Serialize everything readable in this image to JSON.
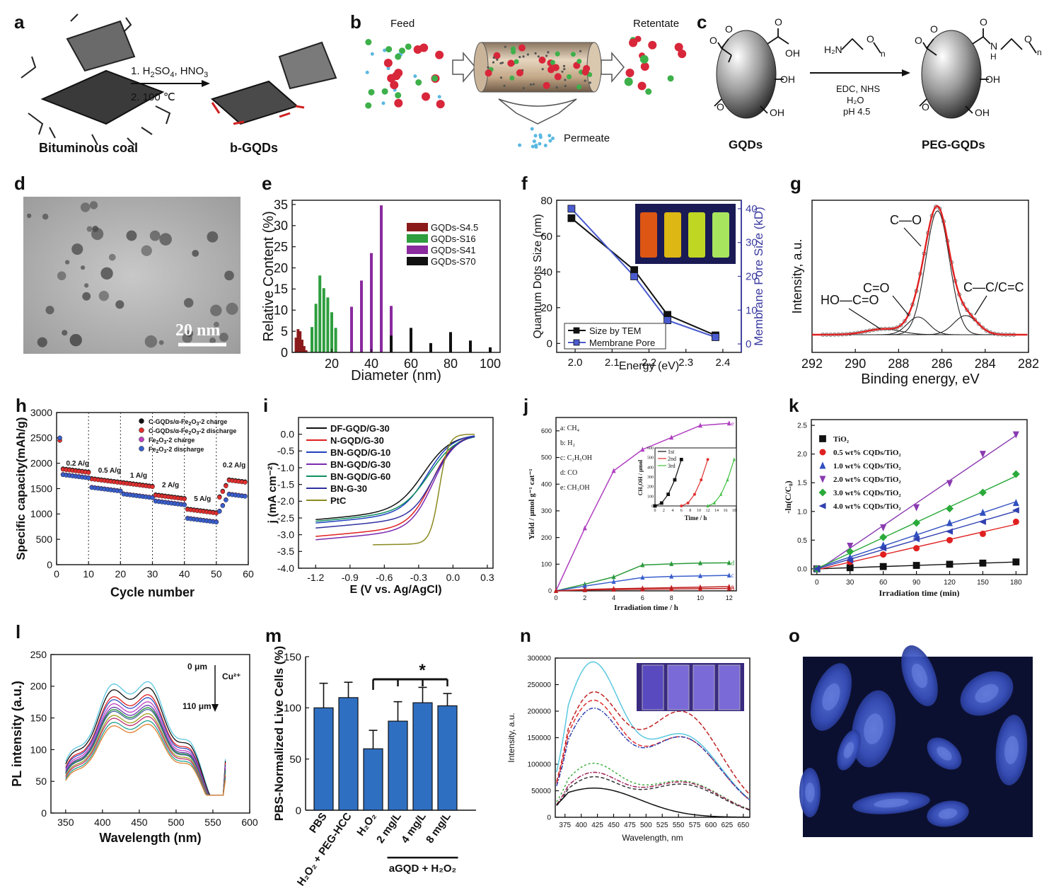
{
  "panel_labels": [
    "a",
    "b",
    "c",
    "d",
    "e",
    "f",
    "g",
    "h",
    "i",
    "j",
    "k",
    "l",
    "m",
    "n",
    "o"
  ],
  "scheme": {
    "a": {
      "left_label": "Bituminous coal",
      "right_label": "b-GQDs",
      "step1_pre": "1. H",
      "step1_sub1": "2",
      "step1_mid": "SO",
      "step1_sub2": "4",
      "step1_mid2": ", HNO",
      "step1_sub3": "3",
      "step2": "2. 100 ℃"
    },
    "b": {
      "feed": "Feed",
      "retentate": "Retentate",
      "permeate": "Permeate"
    },
    "c": {
      "reactant_label": "GQDs",
      "product_label": "PEG-GQDs",
      "reagent_amine": "H₂N",
      "reagent_n": "n",
      "reagent_o": "O",
      "cond1": "EDC, NHS",
      "cond2": "H₂O",
      "cond3": "pH 4.5",
      "oh": "OH",
      "o": "O",
      "nh": "N",
      "h": "H"
    }
  },
  "images": {
    "d": {
      "scale_text": "20 nm"
    },
    "o": {}
  },
  "colors": {
    "maroon": "#8b1a1a",
    "green": "#2e9e3e",
    "purple": "#8a2a9e",
    "black": "#111111",
    "blue": "#3a5fcd",
    "red": "#e03030",
    "bar_blue": "#2f6fc2",
    "cyan": "#5bc8e0"
  },
  "chart_data": [
    {
      "panel": "e",
      "type": "bar",
      "xlabel": "Diameter (nm)",
      "ylabel": "Relative Content (%)",
      "xlim": [
        0,
        105
      ],
      "ylim": [
        0,
        36
      ],
      "xticks": [
        20,
        40,
        60,
        80,
        100
      ],
      "yticks": [
        0,
        5,
        10,
        15,
        20,
        25,
        30,
        35
      ],
      "legend": [
        "GQDs-S4.5",
        "GQDs-S16",
        "GQDs-S41",
        "GQDs-S70"
      ],
      "series": [
        {
          "name": "GQDs-S4.5",
          "x": [
            2,
            3,
            4,
            5,
            6,
            7
          ],
          "values": [
            3.5,
            5.5,
            5,
            3,
            1.5,
            0.5
          ]
        },
        {
          "name": "GQDs-S16",
          "x": [
            10,
            12,
            14,
            16,
            18,
            20,
            22
          ],
          "values": [
            6,
            11.5,
            18.2,
            15.2,
            13,
            9.5,
            5.8
          ]
        },
        {
          "name": "GQDs-S41",
          "x": [
            30,
            35,
            40,
            45,
            50
          ],
          "values": [
            10.8,
            17,
            23.5,
            34.8,
            11
          ]
        },
        {
          "name": "GQDs-S70",
          "x": [
            50,
            60,
            70,
            80,
            90,
            100
          ],
          "values": [
            4,
            5.8,
            2.2,
            4.8,
            2.8,
            1.2
          ]
        }
      ]
    },
    {
      "panel": "f",
      "type": "line",
      "xlabel": "Energy (eV)",
      "ylabel": "Quantum Dots Size (nm)",
      "y2label": "Membrane Pore Size (kD)",
      "xlim": [
        1.95,
        2.45
      ],
      "ylim": [
        -5,
        80
      ],
      "y2lim": [
        -2.5,
        42.5
      ],
      "xticks": [
        2.0,
        2.1,
        2.2,
        2.3,
        2.4
      ],
      "yticks": [
        0,
        20,
        40,
        60,
        80
      ],
      "y2ticks": [
        0,
        10,
        20,
        30,
        40
      ],
      "x": [
        1.99,
        2.16,
        2.25,
        2.38
      ],
      "series": [
        {
          "name": "Size by TEM",
          "values": [
            70,
            41,
            16,
            4.5
          ]
        },
        {
          "name": "Membrane Pore",
          "values": [
            40,
            20,
            7,
            2
          ],
          "axis": "right"
        }
      ]
    },
    {
      "panel": "g",
      "type": "line",
      "xlabel": "Binding energy, eV",
      "ylabel": "Intensity, a.u.",
      "xlim": [
        292,
        282
      ],
      "xticks": [
        292,
        290,
        288,
        286,
        284,
        282
      ],
      "annotations": [
        "C—O",
        "C=O",
        "HO—C=O",
        "C—C/C=C"
      ]
    },
    {
      "panel": "h",
      "type": "line",
      "xlabel": "Cycle number",
      "ylabel": "Specific capacity(mAh/g)",
      "xlim": [
        0,
        60
      ],
      "ylim": [
        0,
        3000
      ],
      "xticks": [
        0,
        10,
        20,
        30,
        40,
        50,
        60
      ],
      "yticks": [
        0,
        500,
        1000,
        1500,
        2000,
        2500,
        3000
      ],
      "rate_labels": [
        "0.2 A/g",
        "0.5 A/g",
        "1 A/g",
        "2 A/g",
        "5 A/g",
        "0.2 A/g"
      ],
      "legend_parts": [
        [
          "C-GQDs/α-Fe",
          "2",
          "O",
          "3",
          "-2 charge"
        ],
        [
          "C-GQDs/α-Fe",
          "2",
          "O",
          "3",
          "-2 discharge"
        ],
        [
          "Fe",
          "2",
          "O",
          "3",
          "-2  charge"
        ],
        [
          "Fe",
          "2",
          "O",
          "3",
          "-2  discharge"
        ]
      ],
      "segments": [
        [
          0,
          1900,
          1820
        ],
        [
          10,
          1700,
          1560
        ],
        [
          20,
          1620,
          1430
        ],
        [
          30,
          1380,
          1290
        ],
        [
          40,
          1100,
          950
        ],
        [
          50,
          1700,
          1450
        ]
      ]
    },
    {
      "panel": "i",
      "type": "line",
      "xlabel": "E (V vs. Ag/AgCl)",
      "ylabel": "j (mA cm⁻²)",
      "xlim": [
        -1.35,
        0.35
      ],
      "ylim": [
        -4.0,
        0.5
      ],
      "xticks": [
        -1.2,
        -0.9,
        -0.6,
        -0.3,
        0.0,
        0.3
      ],
      "yticks": [
        0.0,
        -0.5,
        -1.0,
        -1.5,
        -2.0,
        -2.5,
        -3.0,
        -3.5,
        -4.0
      ],
      "legend": [
        "DF-GQD/G-30",
        "N-GQD/G-30",
        "BN-GQD/G-10",
        "BN-GQD/G-30",
        "BN-GQD/G-60",
        "BN-G-30",
        "PtC"
      ]
    },
    {
      "panel": "j",
      "type": "line",
      "xlabel": "Irradiation time / h",
      "ylabel": "Yield / μmol g⁻¹ cat⁻¹",
      "xlim": [
        0,
        12.5
      ],
      "ylim": [
        0,
        650
      ],
      "xticks": [
        0,
        2,
        4,
        6,
        8,
        10,
        12
      ],
      "yticks": [
        0,
        100,
        200,
        300,
        400,
        500,
        600
      ],
      "legend": [
        "a: CH₄",
        "b: H₂",
        "c: C₂H₅OH",
        "d: CO",
        "e: CH₃OH"
      ],
      "x": [
        0,
        2,
        4,
        6,
        8,
        10,
        12
      ],
      "series": [
        {
          "name": "e",
          "values": [
            0,
            235,
            450,
            530,
            575,
            620,
            628
          ]
        },
        {
          "name": "d",
          "values": [
            0,
            25,
            52,
            97,
            101,
            104,
            105
          ]
        },
        {
          "name": "c",
          "values": [
            0,
            18,
            34,
            50,
            54,
            56,
            58
          ]
        },
        {
          "name": "a",
          "values": [
            0,
            5,
            8,
            10,
            12,
            14,
            16
          ]
        },
        {
          "name": "b",
          "values": [
            0,
            3,
            5,
            6,
            7,
            8,
            9
          ]
        }
      ],
      "inset": {
        "xlabel": "Time / h",
        "ylabel": "CH₃OH / μmol",
        "legend": [
          "1st",
          "2nd",
          "3rd"
        ],
        "xticks": [
          0,
          2,
          4,
          6,
          8,
          10,
          12,
          14,
          16,
          18
        ],
        "yticks": [
          0,
          100,
          200,
          300,
          400,
          500,
          600
        ]
      }
    },
    {
      "panel": "k",
      "type": "scatter",
      "xlabel": "Irradiation time (min)",
      "ylabel": "-ln(C/C₀)",
      "xlim": [
        -5,
        190
      ],
      "ylim": [
        -0.1,
        2.6
      ],
      "xticks": [
        0,
        30,
        60,
        90,
        120,
        150,
        180
      ],
      "yticks": [
        0.0,
        0.5,
        1.0,
        1.5,
        2.0,
        2.5
      ],
      "legend": [
        "TiO₂",
        "0.5 wt% CQDs/TiO₂",
        "1.0 wt% CQDs/TiO₂",
        "2.0 wt% CQDs/TiO₂",
        "3.0 wt% CQDs/TiO₂",
        "4.0 wt% CQDs/TiO₂"
      ],
      "x": [
        0,
        30,
        60,
        90,
        120,
        150,
        180
      ],
      "series": [
        {
          "name": "TiO₂",
          "values": [
            0,
            0.02,
            0.04,
            0.06,
            0.08,
            0.1,
            0.12
          ]
        },
        {
          "name": "0.5 wt% CQDs/TiO₂",
          "values": [
            0,
            0.12,
            0.25,
            0.36,
            0.5,
            0.61,
            0.82
          ]
        },
        {
          "name": "1.0 wt% CQDs/TiO₂",
          "values": [
            0,
            0.2,
            0.41,
            0.6,
            0.8,
            0.98,
            1.15
          ]
        },
        {
          "name": "2.0 wt% CQDs/TiO₂",
          "values": [
            0,
            0.4,
            0.72,
            1.07,
            1.49,
            2.0,
            2.34
          ]
        },
        {
          "name": "3.0 wt% CQDs/TiO₂",
          "values": [
            0,
            0.3,
            0.55,
            0.8,
            1.05,
            1.33,
            1.65
          ]
        },
        {
          "name": "4.0 wt% CQDs/TiO₂",
          "values": [
            0,
            0.15,
            0.36,
            0.52,
            0.65,
            0.82,
            1.02
          ]
        }
      ]
    },
    {
      "panel": "l",
      "type": "line",
      "xlabel": "Wavelength (nm)",
      "ylabel": "PL intensity (a.u.)",
      "xlim": [
        330,
        600
      ],
      "ylim": [
        0,
        250
      ],
      "xticks": [
        350,
        400,
        450,
        500,
        550,
        600
      ],
      "yticks": [
        0,
        50,
        100,
        150,
        200,
        250
      ],
      "annotations": [
        "0 μm",
        "110 μm",
        "Cu²⁺"
      ]
    },
    {
      "panel": "m",
      "type": "bar",
      "ylabel": "PBS-Normalized Live Cells (%)",
      "ylim": [
        0,
        150
      ],
      "yticks": [
        0,
        50,
        100,
        150
      ],
      "categories": [
        "PBS",
        "H₂O₂ + PEG-HCC",
        "H₂O₂",
        "2 mg/L",
        "4 mg/L",
        "8 mg/L"
      ],
      "values": [
        100,
        110,
        60,
        87,
        105,
        102
      ],
      "errors": [
        24,
        15,
        18,
        19,
        15,
        12
      ],
      "group_label": "aGQD + H₂O₂",
      "sig": "*"
    },
    {
      "panel": "n",
      "type": "line",
      "xlabel": "Wavelength, nm",
      "ylabel": "Intensity, a.u.",
      "xlim": [
        360,
        660
      ],
      "ylim": [
        0,
        300000
      ],
      "xticks": [
        375,
        400,
        425,
        450,
        475,
        500,
        525,
        550,
        575,
        600,
        625,
        650
      ],
      "yticks": [
        0,
        50000,
        100000,
        150000,
        200000,
        250000,
        300000
      ]
    }
  ]
}
